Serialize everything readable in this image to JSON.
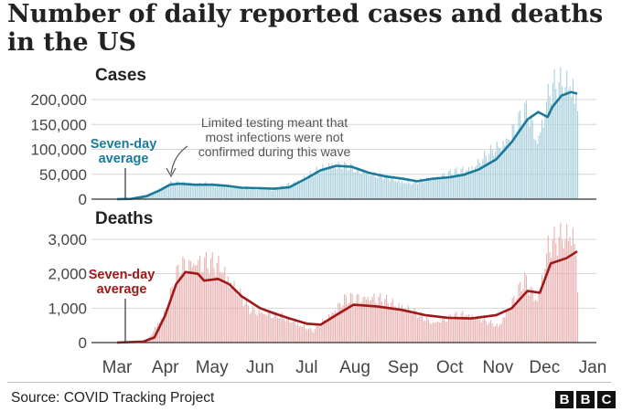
{
  "title": "Number of daily reported cases and deaths in the US",
  "source": "Source: COVID Tracking Project",
  "logo": [
    "B",
    "B",
    "C"
  ],
  "x_ticks": [
    "Mar",
    "Apr",
    "May",
    "Jun",
    "Jul",
    "Aug",
    "Sep",
    "Oct",
    "Nov",
    "Dec",
    "Jan"
  ],
  "colors": {
    "cases_bar": "#a9cfdc",
    "cases_line": "#1a7a9a",
    "deaths_bar": "#e8b0b0",
    "deaths_line": "#a01818",
    "grid": "#d6d6d6"
  },
  "chart_data": [
    {
      "type": "bar",
      "title": "Cases",
      "ylim": [
        0,
        230000
      ],
      "y_ticks": [
        "0",
        "50,000",
        "100,000",
        "150,000",
        "200,000"
      ],
      "avg_label": [
        "Seven-day",
        "average"
      ],
      "annotation": [
        "Limited testing meant that",
        "most infections were not",
        "confirmed during this wave"
      ],
      "x_range": [
        "2020-03-01",
        "2021-01-01"
      ],
      "series": [
        {
          "name": "Seven-day average",
          "kind": "line",
          "points": [
            [
              "2020-03-01",
              0
            ],
            [
              "2020-03-10",
              500
            ],
            [
              "2020-03-20",
              6000
            ],
            [
              "2020-03-28",
              17000
            ],
            [
              "2020-04-04",
              29000
            ],
            [
              "2020-04-10",
              31000
            ],
            [
              "2020-04-20",
              29000
            ],
            [
              "2020-05-01",
              29000
            ],
            [
              "2020-05-10",
              27000
            ],
            [
              "2020-05-20",
              23000
            ],
            [
              "2020-06-01",
              22000
            ],
            [
              "2020-06-10",
              21000
            ],
            [
              "2020-06-20",
              24000
            ],
            [
              "2020-07-01",
              42000
            ],
            [
              "2020-07-10",
              58000
            ],
            [
              "2020-07-20",
              67000
            ],
            [
              "2020-07-30",
              65000
            ],
            [
              "2020-08-10",
              53000
            ],
            [
              "2020-08-20",
              46000
            ],
            [
              "2020-09-01",
              41000
            ],
            [
              "2020-09-10",
              36000
            ],
            [
              "2020-09-20",
              41000
            ],
            [
              "2020-10-01",
              44000
            ],
            [
              "2020-10-10",
              49000
            ],
            [
              "2020-10-20",
              60000
            ],
            [
              "2020-10-31",
              80000
            ],
            [
              "2020-11-10",
              115000
            ],
            [
              "2020-11-20",
              160000
            ],
            [
              "2020-11-27",
              175000
            ],
            [
              "2020-12-03",
              165000
            ],
            [
              "2020-12-06",
              185000
            ],
            [
              "2020-12-12",
              208000
            ],
            [
              "2020-12-18",
              215000
            ],
            [
              "2020-12-22",
              212000
            ]
          ]
        },
        {
          "name": "Daily cases",
          "kind": "bar",
          "points": [
            [
              "2020-03-01",
              0
            ],
            [
              "2020-03-15",
              1500
            ],
            [
              "2020-03-25",
              12000
            ],
            [
              "2020-04-04",
              34000
            ],
            [
              "2020-04-24",
              33000
            ],
            [
              "2020-05-15",
              25000
            ],
            [
              "2020-06-10",
              20000
            ],
            [
              "2020-06-26",
              40000
            ],
            [
              "2020-07-17",
              75000
            ],
            [
              "2020-07-25",
              70000
            ],
            [
              "2020-08-15",
              50000
            ],
            [
              "2020-09-06",
              33000
            ],
            [
              "2020-09-20",
              45000
            ],
            [
              "2020-10-16",
              68000
            ],
            [
              "2020-11-06",
              125000
            ],
            [
              "2020-11-20",
              190000
            ],
            [
              "2020-11-26",
              120000
            ],
            [
              "2020-12-04",
              230000
            ],
            [
              "2020-12-11",
              240000
            ],
            [
              "2020-12-19",
              248000
            ],
            [
              "2020-12-22",
              195000
            ]
          ]
        }
      ]
    },
    {
      "type": "bar",
      "title": "Deaths",
      "ylim": [
        0,
        3300
      ],
      "y_ticks": [
        "0",
        "1,000",
        "2,000",
        "3,000"
      ],
      "avg_label": [
        "Seven-day",
        "average"
      ],
      "x_range": [
        "2020-03-01",
        "2021-01-01"
      ],
      "series": [
        {
          "name": "Seven-day average",
          "kind": "line",
          "points": [
            [
              "2020-03-01",
              0
            ],
            [
              "2020-03-18",
              30
            ],
            [
              "2020-03-25",
              150
            ],
            [
              "2020-04-01",
              800
            ],
            [
              "2020-04-08",
              1700
            ],
            [
              "2020-04-14",
              2050
            ],
            [
              "2020-04-22",
              2000
            ],
            [
              "2020-04-26",
              1800
            ],
            [
              "2020-05-05",
              1850
            ],
            [
              "2020-05-12",
              1700
            ],
            [
              "2020-05-20",
              1350
            ],
            [
              "2020-06-01",
              1000
            ],
            [
              "2020-06-10",
              850
            ],
            [
              "2020-06-20",
              700
            ],
            [
              "2020-07-01",
              550
            ],
            [
              "2020-07-10",
              520
            ],
            [
              "2020-07-20",
              800
            ],
            [
              "2020-07-31",
              1100
            ],
            [
              "2020-08-15",
              1050
            ],
            [
              "2020-08-31",
              950
            ],
            [
              "2020-09-15",
              800
            ],
            [
              "2020-09-30",
              720
            ],
            [
              "2020-10-15",
              700
            ],
            [
              "2020-10-31",
              800
            ],
            [
              "2020-11-10",
              1000
            ],
            [
              "2020-11-20",
              1500
            ],
            [
              "2020-11-28",
              1450
            ],
            [
              "2020-12-05",
              2300
            ],
            [
              "2020-12-15",
              2450
            ],
            [
              "2020-12-22",
              2650
            ]
          ]
        },
        {
          "name": "Daily deaths",
          "kind": "bar",
          "points": [
            [
              "2020-03-01",
              0
            ],
            [
              "2020-03-20",
              50
            ],
            [
              "2020-03-31",
              900
            ],
            [
              "2020-04-10",
              2300
            ],
            [
              "2020-04-21",
              2500
            ],
            [
              "2020-05-07",
              2300
            ],
            [
              "2020-05-25",
              1000
            ],
            [
              "2020-06-15",
              800
            ],
            [
              "2020-07-05",
              350
            ],
            [
              "2020-07-25",
              1300
            ],
            [
              "2020-08-10",
              1400
            ],
            [
              "2020-09-01",
              1100
            ],
            [
              "2020-09-20",
              600
            ],
            [
              "2020-10-10",
              900
            ],
            [
              "2020-11-01",
              500
            ],
            [
              "2020-11-18",
              1900
            ],
            [
              "2020-11-26",
              1300
            ],
            [
              "2020-12-03",
              2900
            ],
            [
              "2020-12-16",
              3300
            ],
            [
              "2020-12-20",
              3450
            ],
            [
              "2020-12-22",
              1600
            ]
          ]
        }
      ]
    }
  ]
}
